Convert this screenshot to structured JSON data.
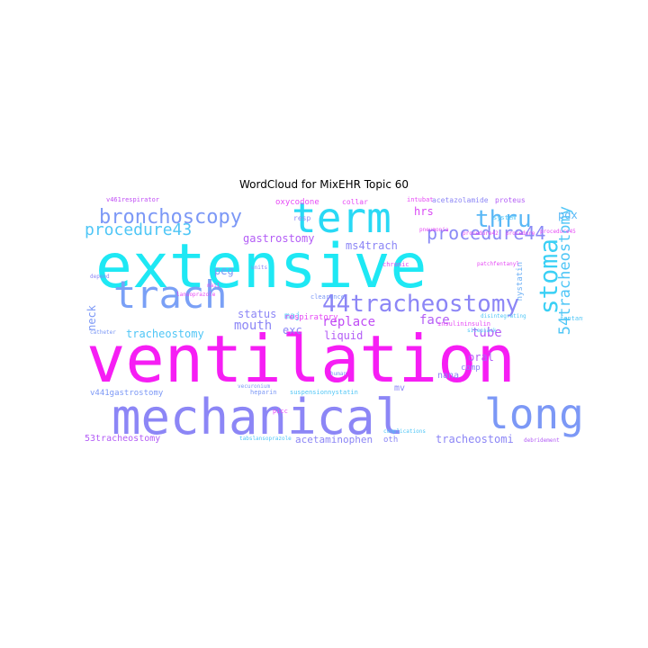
{
  "title": "WordCloud for MixEHR Topic 60",
  "palette": {
    "cyan": "#1ee8f4",
    "magenta": "#f61ef4",
    "periwinkle": "#8c86f6",
    "lightblue": "#4fc6f6",
    "violet": "#b35df6",
    "pink": "#e64af5"
  },
  "words": [
    {
      "id": "extensive",
      "text": "extensive",
      "color": "#1ee8f4"
    },
    {
      "id": "ventilation",
      "text": "ventilation",
      "color": "#f61ef4"
    },
    {
      "id": "mechanical",
      "text": "mechanical",
      "color": "#8c86f6"
    },
    {
      "id": "term",
      "text": "term",
      "color": "#29d9f5"
    },
    {
      "id": "long",
      "text": "long",
      "color": "#7c98f6"
    },
    {
      "id": "trach",
      "text": "trach",
      "color": "#7aa0f6"
    },
    {
      "id": "bronchoscopy",
      "text": "bronchoscopy",
      "color": "#7c98f6"
    },
    {
      "id": "44tracheostomy",
      "text": "44tracheostomy",
      "color": "#8c86f6"
    },
    {
      "id": "stoma",
      "text": "stoma",
      "color": "#3ad0f5"
    },
    {
      "id": "thru",
      "text": "thru",
      "color": "#5ab8f6"
    },
    {
      "id": "procedure44",
      "text": "procedure44",
      "color": "#8a8af6"
    },
    {
      "id": "procedure43",
      "text": "procedure43",
      "color": "#4fc6f6"
    },
    {
      "id": "54tracheostomy",
      "text": "54tracheostomy",
      "color": "#4fc6f6"
    },
    {
      "id": "gastrostomy",
      "text": "gastrostomy",
      "color": "#b35df6"
    },
    {
      "id": "ms4trach",
      "text": "ms4trach",
      "color": "#8c86f6"
    },
    {
      "id": "pdx",
      "text": "pdx",
      "color": "#5ab8f6"
    },
    {
      "id": "peg",
      "text": "peg",
      "color": "#7c98f6"
    },
    {
      "id": "status",
      "text": "status",
      "color": "#8c86f6"
    },
    {
      "id": "mouth",
      "text": "mouth",
      "color": "#8c86f6"
    },
    {
      "id": "replace",
      "text": "replace",
      "color": "#c04cf5"
    },
    {
      "id": "face",
      "text": "face",
      "color": "#b35df6"
    },
    {
      "id": "hrs",
      "text": "hrs",
      "color": "#d94af5"
    },
    {
      "id": "neck",
      "text": "neck",
      "color": "#7c98f6"
    },
    {
      "id": "tracheostomy",
      "text": "tracheostomy",
      "color": "#4fc6f6"
    },
    {
      "id": "exc",
      "text": "exc",
      "color": "#8c86f6"
    },
    {
      "id": "maj",
      "text": "maj",
      "color": "#4fc6f6"
    },
    {
      "id": "respiratory",
      "text": "respiratory",
      "color": "#e64af5"
    },
    {
      "id": "liquid",
      "text": "liquid",
      "color": "#b35df6"
    },
    {
      "id": "tube",
      "text": "tube",
      "color": "#b35df6"
    },
    {
      "id": "oral",
      "text": "oral",
      "color": "#b35df6"
    },
    {
      "id": "nana",
      "text": "nana",
      "color": "#8c86f6"
    },
    {
      "id": "comp",
      "text": "comp",
      "color": "#8c86f6"
    },
    {
      "id": "mv",
      "text": "mv",
      "color": "#8c86f6"
    },
    {
      "id": "v441gastrostomy",
      "text": "v441gastrostomy",
      "color": "#7c98f6"
    },
    {
      "id": "53tracheostomy",
      "text": "53tracheostomy",
      "color": "#b35df6"
    },
    {
      "id": "acetaminophen",
      "text": "acetaminophen",
      "color": "#8c86f6"
    },
    {
      "id": "oth",
      "text": "oth",
      "color": "#8c86f6"
    },
    {
      "id": "tracheostomi",
      "text": "tracheostomi",
      "color": "#8c86f6"
    },
    {
      "id": "nystatin",
      "text": "nystatin",
      "color": "#6cb0f6"
    },
    {
      "id": "fentanyl",
      "text": "fentanyl",
      "color": "#4fc6f6"
    },
    {
      "id": "v461respirator",
      "text": "v461respirator",
      "color": "#c04cf5"
    },
    {
      "id": "oxycodone",
      "text": "oxycodone",
      "color": "#e64af5"
    },
    {
      "id": "collar",
      "text": "collar",
      "color": "#e64af5"
    },
    {
      "id": "intubat",
      "text": "intubat",
      "color": "#e64af5"
    },
    {
      "id": "acetazolamide",
      "text": "acetazolamide",
      "color": "#8c86f6"
    },
    {
      "id": "proteus",
      "text": "proteus",
      "color": "#b35df6"
    },
    {
      "id": "resp",
      "text": "resp",
      "color": "#8c86f6"
    },
    {
      "id": "system",
      "text": "system",
      "color": "#4fc6f6"
    },
    {
      "id": "depend",
      "text": "depend",
      "color": "#8c86f6"
    },
    {
      "id": "nail",
      "text": "nail",
      "color": "#e64af5"
    },
    {
      "id": "lansoprazole",
      "text": "lansoprazole",
      "color": "#e64af5"
    },
    {
      "id": "units",
      "text": "units",
      "color": "#8c86f6"
    },
    {
      "id": "clearance",
      "text": "clearance",
      "color": "#7c98f6"
    },
    {
      "id": "chronic",
      "text": "chronic",
      "color": "#e64af5"
    },
    {
      "id": "procedure45",
      "text": "procedure45",
      "color": "#e64af5"
    },
    {
      "id": "catheter",
      "text": "catheter",
      "color": "#7c98f6"
    },
    {
      "id": "vecuronium",
      "text": "vecuronium",
      "color": "#7c98f6"
    },
    {
      "id": "heparin",
      "text": "heparin",
      "color": "#7c98f6"
    },
    {
      "id": "suspensionnystatin",
      "text": "suspensionnystatin",
      "color": "#4fc6f6"
    },
    {
      "id": "picc",
      "text": "picc",
      "color": "#e64af5"
    },
    {
      "id": "tabslansoprazole",
      "text": "tabslansoprazole",
      "color": "#4fc6f6"
    },
    {
      "id": "complications",
      "text": "complications",
      "color": "#4fc6f6"
    },
    {
      "id": "debridement",
      "text": "debridement",
      "color": "#b35df6"
    },
    {
      "id": "human",
      "text": "human",
      "color": "#7c98f6"
    },
    {
      "id": "insulininsulin",
      "text": "insulininsulin",
      "color": "#e64af5"
    },
    {
      "id": "disintegrating",
      "text": "disintegrating",
      "color": "#4fc6f6"
    },
    {
      "id": "sitepiack",
      "text": "sitepiack",
      "color": "#4fc6f6"
    },
    {
      "id": "patchfentanyl",
      "text": "patchfentanyl",
      "color": "#e64af5"
    },
    {
      "id": "pneumonia",
      "text": "pneumonia",
      "color": "#e64af5"
    },
    {
      "id": "procedure42",
      "text": "procedure42",
      "color": "#e64af5"
    },
    {
      "id": "procedure",
      "text": "procedure",
      "color": "#e64af5"
    }
  ]
}
